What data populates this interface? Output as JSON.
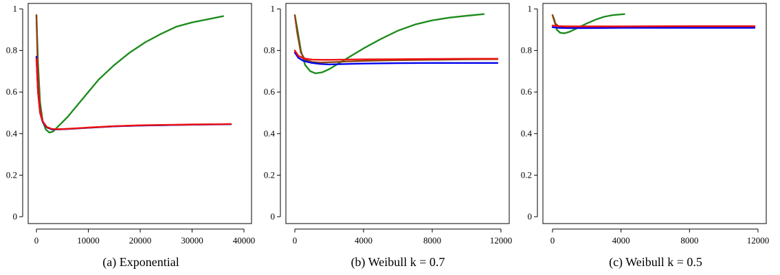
{
  "colors": {
    "green": "#1e8c1e",
    "brown": "#8b4513",
    "blue": "#0000ee",
    "red": "#ee1111"
  },
  "chart_data": [
    {
      "type": "line",
      "caption": "(a) Exponential",
      "xlim": [
        0,
        40000
      ],
      "ylim": [
        0,
        1
      ],
      "xticks": [
        0,
        10000,
        20000,
        30000,
        40000
      ],
      "xtick_labels": [
        "0",
        "10000",
        "20000",
        "30000",
        "40000"
      ],
      "yticks": [
        0,
        0.2,
        0.4,
        0.6,
        0.8,
        1
      ],
      "ytick_labels": [
        "0",
        "0.2",
        "0.4",
        "0.6",
        "0.8",
        "1"
      ],
      "series": [
        {
          "color": "green",
          "x": [
            0,
            300,
            700,
            1200,
            1800,
            2500,
            3200,
            4000,
            6000,
            8000,
            10000,
            12000,
            15000,
            18000,
            21000,
            24000,
            27000,
            30000,
            33000,
            36000
          ],
          "y": [
            0.97,
            0.74,
            0.55,
            0.46,
            0.42,
            0.405,
            0.41,
            0.43,
            0.48,
            0.54,
            0.6,
            0.66,
            0.73,
            0.79,
            0.84,
            0.88,
            0.915,
            0.935,
            0.95,
            0.965
          ]
        },
        {
          "color": "brown",
          "x": [
            0,
            300,
            700,
            1200,
            2000,
            3000,
            4000,
            6000,
            10000,
            15000,
            20000,
            25000,
            30000,
            37500
          ],
          "y": [
            0.97,
            0.68,
            0.52,
            0.46,
            0.43,
            0.42,
            0.42,
            0.422,
            0.428,
            0.435,
            0.439,
            0.441,
            0.443,
            0.446
          ]
        },
        {
          "color": "blue",
          "x": [
            0,
            300,
            700,
            1200,
            2000,
            3000,
            4000,
            6000,
            10000,
            15000,
            20000,
            25000,
            30000,
            37500
          ],
          "y": [
            0.77,
            0.6,
            0.5,
            0.455,
            0.43,
            0.42,
            0.42,
            0.422,
            0.428,
            0.435,
            0.439,
            0.441,
            0.443,
            0.445
          ]
        },
        {
          "color": "red",
          "x": [
            0,
            300,
            700,
            1200,
            2000,
            3000,
            4000,
            6000,
            10000,
            15000,
            20000,
            25000,
            30000,
            37500
          ],
          "y": [
            0.76,
            0.6,
            0.5,
            0.458,
            0.432,
            0.422,
            0.421,
            0.423,
            0.429,
            0.436,
            0.44,
            0.442,
            0.444,
            0.446
          ]
        }
      ]
    },
    {
      "type": "line",
      "caption": "(b) Weibull k = 0.7",
      "xlim": [
        0,
        12000
      ],
      "ylim": [
        0,
        1
      ],
      "xticks": [
        0,
        4000,
        8000,
        12000
      ],
      "xtick_labels": [
        "0",
        "4000",
        "8000",
        "12000"
      ],
      "yticks": [
        0,
        0.2,
        0.4,
        0.6,
        0.8,
        1
      ],
      "ytick_labels": [
        "0",
        "0.2",
        "0.4",
        "0.6",
        "0.8",
        "1"
      ],
      "series": [
        {
          "color": "green",
          "x": [
            0,
            150,
            350,
            600,
            900,
            1200,
            1600,
            2000,
            3000,
            4000,
            5000,
            6000,
            7000,
            8000,
            9000,
            10000,
            11000
          ],
          "y": [
            0.97,
            0.9,
            0.8,
            0.73,
            0.7,
            0.69,
            0.695,
            0.71,
            0.76,
            0.81,
            0.855,
            0.895,
            0.925,
            0.945,
            0.958,
            0.967,
            0.975
          ]
        },
        {
          "color": "brown",
          "x": [
            0,
            150,
            350,
            600,
            1000,
            1500,
            2500,
            4000,
            6000,
            8000,
            10000,
            11800
          ],
          "y": [
            0.97,
            0.88,
            0.79,
            0.755,
            0.745,
            0.742,
            0.745,
            0.75,
            0.753,
            0.755,
            0.757,
            0.758
          ]
        },
        {
          "color": "blue",
          "x": [
            0,
            200,
            500,
            1000,
            1500,
            2000,
            3000,
            4000,
            6000,
            8000,
            10000,
            11800
          ],
          "y": [
            0.79,
            0.765,
            0.75,
            0.74,
            0.735,
            0.733,
            0.735,
            0.737,
            0.739,
            0.74,
            0.74,
            0.74
          ]
        },
        {
          "color": "red",
          "x": [
            0,
            200,
            500,
            1000,
            1500,
            2000,
            3000,
            4000,
            6000,
            8000,
            10000,
            11800
          ],
          "y": [
            0.8,
            0.775,
            0.762,
            0.756,
            0.755,
            0.755,
            0.756,
            0.757,
            0.758,
            0.759,
            0.76,
            0.76
          ]
        }
      ]
    },
    {
      "type": "line",
      "caption": "(c) Weibull k = 0.5",
      "xlim": [
        0,
        12000
      ],
      "ylim": [
        0,
        1
      ],
      "xticks": [
        0,
        4000,
        8000,
        12000
      ],
      "xtick_labels": [
        "0",
        "4000",
        "8000",
        "12000"
      ],
      "yticks": [
        0,
        0.2,
        0.4,
        0.6,
        0.8,
        1
      ],
      "ytick_labels": [
        "0",
        "0.2",
        "0.4",
        "0.6",
        "0.8",
        "1"
      ],
      "series": [
        {
          "color": "green",
          "x": [
            0,
            100,
            250,
            450,
            700,
            1000,
            1500,
            2000,
            2500,
            3000,
            3500,
            4200
          ],
          "y": [
            0.97,
            0.95,
            0.9,
            0.885,
            0.883,
            0.89,
            0.91,
            0.93,
            0.948,
            0.962,
            0.97,
            0.975
          ]
        },
        {
          "color": "brown",
          "x": [
            0,
            150,
            350,
            600,
            1000,
            2000,
            4000,
            8000,
            11800
          ],
          "y": [
            0.97,
            0.93,
            0.917,
            0.913,
            0.912,
            0.912,
            0.913,
            0.914,
            0.915
          ]
        },
        {
          "color": "blue",
          "x": [
            0,
            300,
            800,
            2000,
            4000,
            8000,
            11800
          ],
          "y": [
            0.912,
            0.909,
            0.908,
            0.908,
            0.909,
            0.909,
            0.909
          ]
        },
        {
          "color": "red",
          "x": [
            0,
            300,
            800,
            2000,
            4000,
            8000,
            11800
          ],
          "y": [
            0.92,
            0.917,
            0.916,
            0.916,
            0.916,
            0.917,
            0.917
          ]
        }
      ]
    }
  ]
}
